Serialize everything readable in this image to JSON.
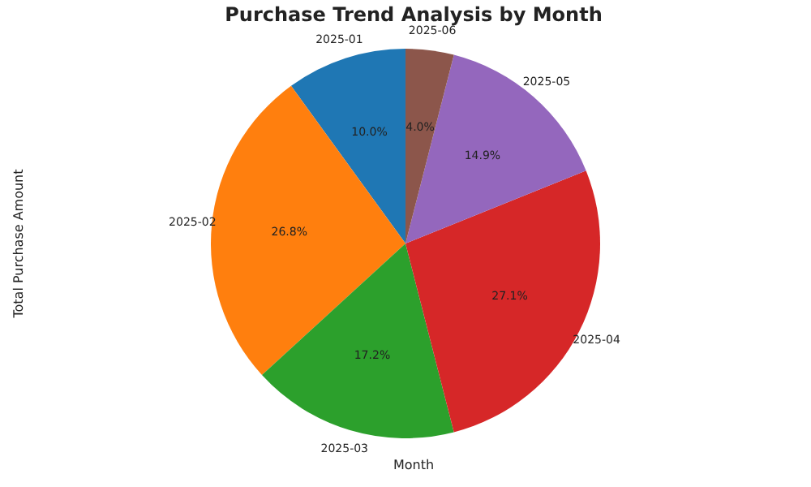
{
  "chart_data": {
    "type": "pie",
    "title": "Purchase Trend Analysis by Month",
    "xlabel": "Month",
    "ylabel": "Total Purchase Amount",
    "categories": [
      "2025-01",
      "2025-02",
      "2025-03",
      "2025-04",
      "2025-05",
      "2025-06"
    ],
    "values": [
      10.0,
      26.8,
      17.2,
      27.1,
      14.9,
      4.0
    ],
    "value_labels": [
      "10.0%",
      "26.8%",
      "17.2%",
      "27.1%",
      "14.9%",
      "4.0%"
    ],
    "colors": [
      "#1f77b4",
      "#ff7f0e",
      "#2ca02c",
      "#d62728",
      "#9467bd",
      "#8c564b"
    ]
  }
}
